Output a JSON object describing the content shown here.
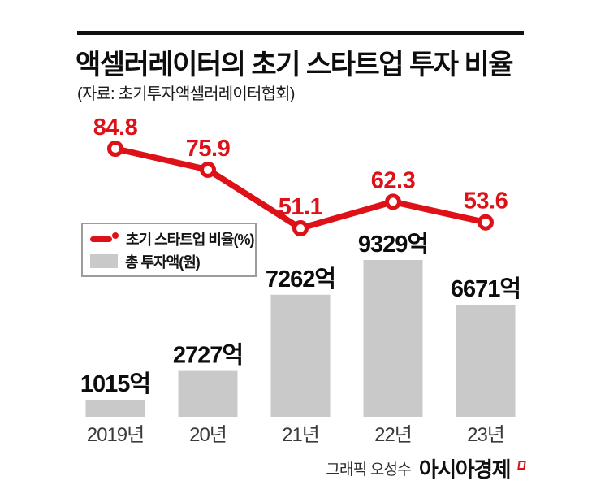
{
  "header": {
    "title": "액셀러레이터의 초기 스타트업 투자 비율",
    "source": "(자료: 초기투자액셀러레이터협회)"
  },
  "legend": {
    "line_label": "초기 스타트업 비율(%)",
    "bar_label": "총 투자액(원)"
  },
  "credit": {
    "byline": "그래픽 오성수",
    "publisher": "아시아경제"
  },
  "colors": {
    "accent_red": "#dd1117",
    "bar_gray": "#c9c9c9",
    "ink": "#0d0d0d"
  },
  "chart_data": {
    "type": "combo",
    "title": "액셀러레이터의 초기 스타트업 투자 비율",
    "source": "초기투자액셀러레이터협회",
    "categories": [
      "2019년",
      "20년",
      "21년",
      "22년",
      "23년"
    ],
    "series": [
      {
        "name": "초기 스타트업 비율(%)",
        "type": "line",
        "unit": "%",
        "color": "#dd1117",
        "values": [
          84.8,
          75.9,
          51.1,
          62.3,
          53.6
        ],
        "value_labels": [
          "84.8",
          "75.9",
          "51.1",
          "62.3",
          "53.6"
        ]
      },
      {
        "name": "총 투자액(원)",
        "type": "bar",
        "unit": "억원",
        "color": "#c9c9c9",
        "values": [
          1015,
          2727,
          7262,
          9329,
          6671
        ],
        "value_labels": [
          "1015억",
          "2727억",
          "7262억",
          "9329억",
          "6671억"
        ]
      }
    ],
    "grid": false,
    "axes_visible": false,
    "legend_position": "middle-left"
  }
}
